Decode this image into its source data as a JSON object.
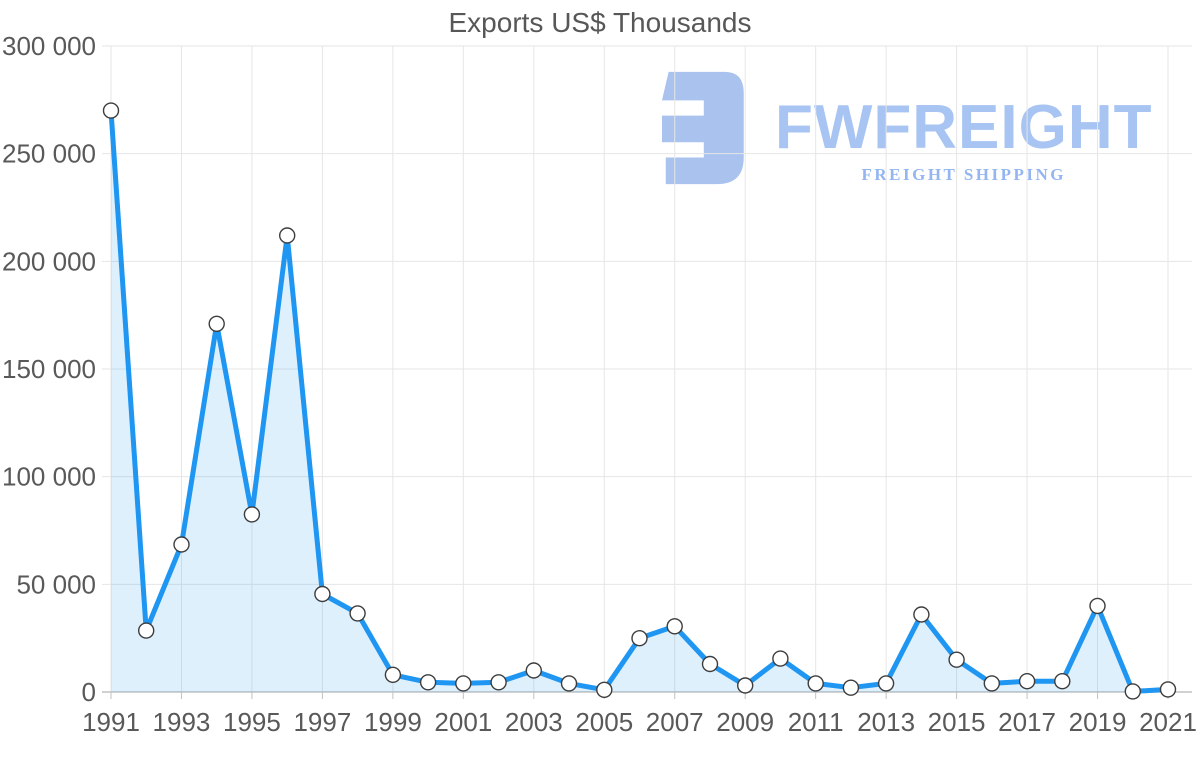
{
  "watermark": {
    "brand": "FWFREIGHT",
    "tagline": "FREIGHT SHIPPING",
    "icon": "fwfreight-logo-icon",
    "icon_color": "#a9c3ee",
    "brand_color": "#a7c4f2",
    "tagline_color": "#93b6f0"
  },
  "chart_data": {
    "type": "area",
    "title": "Exports US$ Thousands",
    "xlabel": "",
    "ylabel": "",
    "x": [
      1991,
      1992,
      1993,
      1994,
      1995,
      1996,
      1997,
      1998,
      1999,
      2000,
      2001,
      2002,
      2003,
      2004,
      2005,
      2006,
      2007,
      2008,
      2009,
      2010,
      2011,
      2012,
      2013,
      2014,
      2015,
      2016,
      2017,
      2018,
      2019,
      2020,
      2021
    ],
    "values": [
      270000,
      28500,
      68500,
      171000,
      82500,
      212000,
      45500,
      36500,
      8000,
      4500,
      4000,
      4500,
      10000,
      4000,
      1000,
      25000,
      30500,
      13000,
      3000,
      15500,
      4000,
      2000,
      4000,
      36000,
      15000,
      4000,
      5000,
      5000,
      40000,
      300,
      1200
    ],
    "xlim": [
      1991,
      2021
    ],
    "ylim": [
      0,
      300000
    ],
    "x_ticks": [
      1991,
      1993,
      1995,
      1997,
      1999,
      2001,
      2003,
      2005,
      2007,
      2009,
      2011,
      2013,
      2015,
      2017,
      2019,
      2021
    ],
    "y_ticks": [
      0,
      50000,
      100000,
      150000,
      200000,
      250000,
      300000
    ],
    "y_tick_labels": [
      "0",
      "50 000",
      "100 000",
      "150 000",
      "200 000",
      "250 000",
      "300 000"
    ],
    "grid": true,
    "legend": "none",
    "line_color": "#1e96f2",
    "fill_color": "rgba(30,150,242,0.14)",
    "marker": "circle-white",
    "marker_stroke": "#3d3d3d",
    "grid_color": "#e6e6e6",
    "axis_color": "#c2c2c2",
    "label_color": "#595959"
  }
}
